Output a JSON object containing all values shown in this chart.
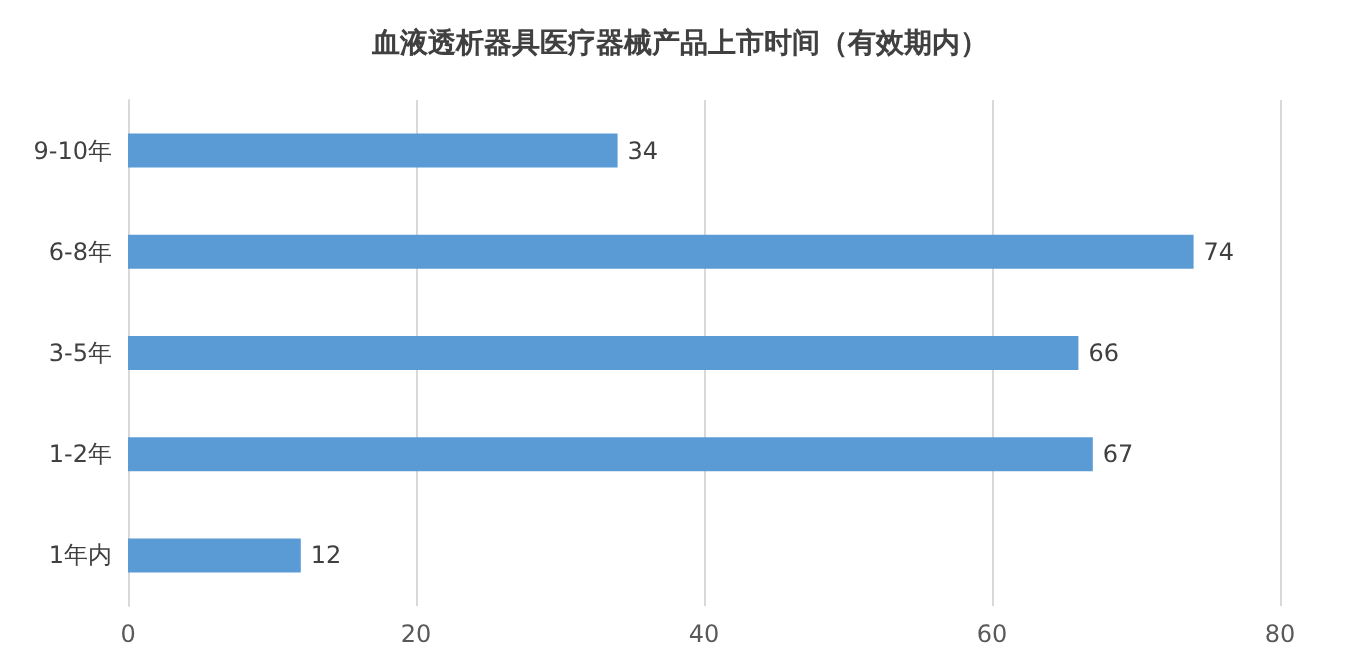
{
  "chart_data": {
    "type": "bar",
    "orientation": "horizontal",
    "title": "血液透析器具医疗器械产品上市时间（有效期内）",
    "categories": [
      "9-10年",
      "6-8年",
      "3-5年",
      "1-2年",
      "1年内"
    ],
    "values": [
      34,
      74,
      66,
      67,
      12
    ],
    "color": "#5b9bd5",
    "xlim": [
      0,
      80
    ],
    "xticks": [
      0,
      20,
      40,
      60,
      80
    ],
    "grid": "x",
    "data_labels": true
  }
}
